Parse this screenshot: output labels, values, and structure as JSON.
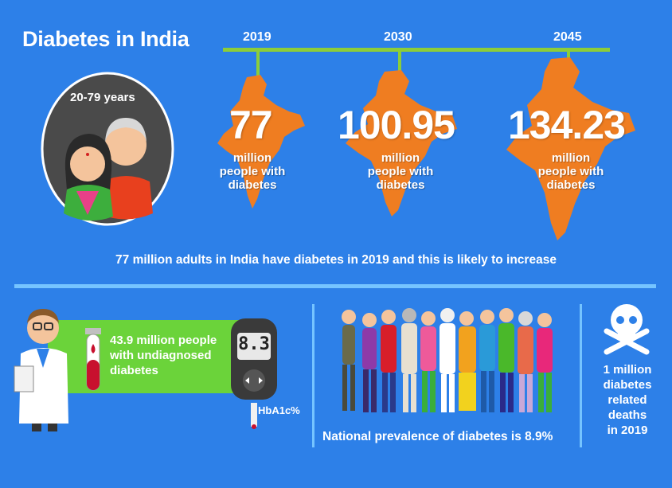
{
  "title": "Diabetes in India",
  "age_group": "20-79 years",
  "timeline": [
    {
      "year": "2019",
      "value": "77",
      "unit_lines": [
        "million",
        "people with",
        "diabetes"
      ]
    },
    {
      "year": "2030",
      "value": "100.95",
      "unit_lines": [
        "million",
        "people with",
        "diabetes"
      ]
    },
    {
      "year": "2045",
      "value": "134.23",
      "unit_lines": [
        "million",
        "people with",
        "diabetes"
      ]
    }
  ],
  "summary": "77 million adults in India have diabetes in 2019 and this is likely to increase",
  "undiagnosed": {
    "line1": "43.9 million people",
    "line2": "with undiagnosed",
    "line3": "diabetes"
  },
  "meter": {
    "reading": "8.3",
    "label": "HbA1c%"
  },
  "prevalence": "National prevalence of diabetes is 8.9%",
  "deaths": {
    "line1": "1 million",
    "line2": "diabetes",
    "line3": "related",
    "line4": "deaths",
    "line5": "in 2019"
  },
  "colors": {
    "background": "#2d80e8",
    "timeline": "#8ccd3a",
    "map": "#ef7d21",
    "box": "#6bd33a",
    "divider": "#75c4ff"
  }
}
